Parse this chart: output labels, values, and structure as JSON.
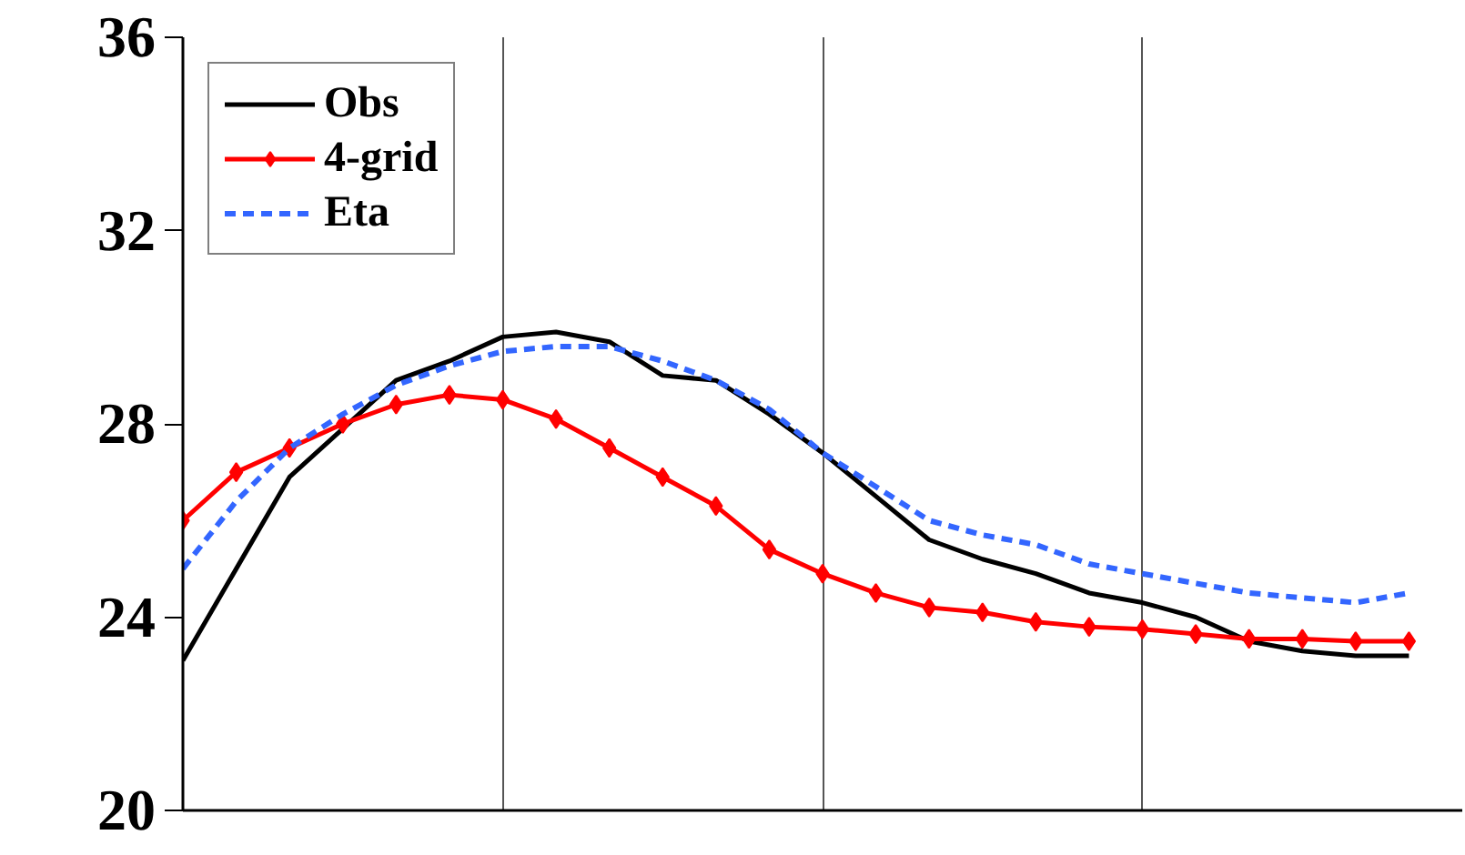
{
  "chart_data": {
    "type": "line",
    "categories": [
      null,
      null,
      null,
      null,
      null,
      null,
      null,
      null,
      null,
      null,
      null,
      null,
      null,
      null,
      null,
      null,
      null,
      null,
      null,
      null,
      null,
      null,
      null,
      null
    ],
    "series": [
      {
        "name": "Obs",
        "color": "#000000",
        "marker": "none",
        "line_style": "solid",
        "values": [
          23.1,
          25.0,
          26.9,
          27.9,
          28.9,
          29.3,
          29.8,
          29.9,
          29.7,
          29.0,
          28.9,
          28.2,
          27.4,
          26.5,
          25.6,
          25.2,
          24.9,
          24.5,
          24.3,
          24.0,
          23.5,
          23.3,
          23.2,
          23.2
        ]
      },
      {
        "name": "4-grid",
        "color": "#ff0000",
        "marker": "diamond",
        "line_style": "solid",
        "values": [
          26.0,
          27.0,
          27.5,
          28.0,
          28.4,
          28.6,
          28.5,
          28.1,
          27.5,
          26.9,
          26.3,
          25.4,
          24.9,
          24.5,
          24.2,
          24.1,
          23.9,
          23.8,
          23.75,
          23.65,
          23.55,
          23.55,
          23.5,
          23.5
        ]
      },
      {
        "name": "Eta",
        "color": "#3366ff",
        "marker": "none",
        "line_style": "dashed",
        "values": [
          25.0,
          26.4,
          27.5,
          28.2,
          28.8,
          29.2,
          29.5,
          29.6,
          29.6,
          29.3,
          28.9,
          28.3,
          27.4,
          26.7,
          26.0,
          25.7,
          25.5,
          25.1,
          24.9,
          24.7,
          24.5,
          24.4,
          24.3,
          24.5
        ]
      }
    ],
    "ylim": [
      20,
      36
    ],
    "yticks": [
      20,
      24,
      28,
      32,
      36
    ],
    "grid": "x",
    "legend": "top left",
    "tick_labels": "y"
  }
}
